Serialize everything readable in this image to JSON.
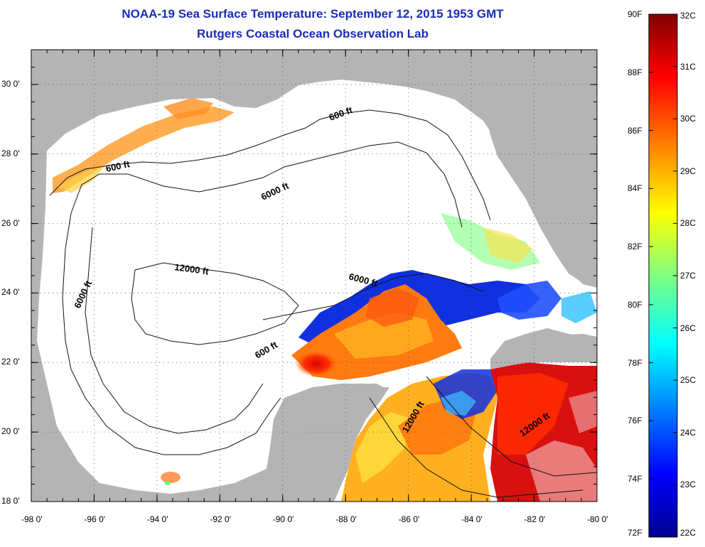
{
  "header": {
    "title": "NOAA-19 Sea Surface Temperature:  September 12, 2015 1953 GMT",
    "subtitle": "Rutgers Coastal Ocean Observation Lab"
  },
  "map": {
    "region": "Gulf of Mexico",
    "lon_range": [
      -98,
      -80
    ],
    "lat_range": [
      18,
      31
    ],
    "x_ticks": [
      "-98 0'",
      "-96 0'",
      "-94 0'",
      "-92 0'",
      "-90 0'",
      "-88 0'",
      "-86 0'",
      "-84 0'",
      "-82 0'",
      "-80 0'"
    ],
    "y_ticks": [
      "30 0'",
      "28 0'",
      "26 0'",
      "24 0'",
      "22 0'",
      "20 0'",
      "18 0'"
    ],
    "grid": "dotted",
    "land_color": "#b4b4b4",
    "no_data_color": "#ffffff",
    "contour_labels": [
      "600 ft",
      "600 ft",
      "6000 ft",
      "6000 ft",
      "12000 ft",
      "6000 ft",
      "600 ft",
      "12000 ft",
      "12000 ft"
    ]
  },
  "colorbar": {
    "fahrenheit_labels": [
      "90F",
      "88F",
      "86F",
      "84F",
      "82F",
      "80F",
      "78F",
      "76F",
      "74F",
      "72F"
    ],
    "celsius_labels": [
      "32C",
      "31C",
      "30C",
      "29C",
      "28C",
      "27C",
      "26C",
      "25C",
      "24C",
      "23C",
      "22C"
    ],
    "range_f": [
      72,
      90
    ],
    "range_c": [
      22,
      32
    ],
    "colormap": [
      "#00008f",
      "#0000ff",
      "#0080ff",
      "#00ffff",
      "#80ff80",
      "#ffff00",
      "#ff8000",
      "#ff0000",
      "#800000"
    ]
  }
}
